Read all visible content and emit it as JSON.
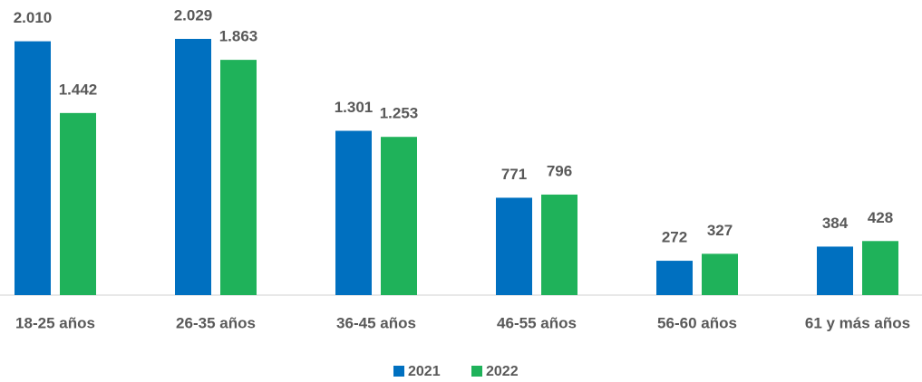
{
  "chart_data": {
    "type": "bar",
    "categories": [
      "18-25 años",
      "26-35 años",
      "36-45 años",
      "46-55 años",
      "56-60 años",
      "61 y más años"
    ],
    "series": [
      {
        "name": "2021",
        "color": "#0070c0",
        "values": [
          2010,
          2029,
          1301,
          771,
          272,
          384
        ],
        "value_labels": [
          "2.010",
          "2.029",
          "1.301",
          "771",
          "272",
          "384"
        ]
      },
      {
        "name": "2022",
        "color": "#1fb25a",
        "values": [
          1442,
          1863,
          1253,
          796,
          327,
          428
        ],
        "value_labels": [
          "1.442",
          "1.863",
          "1.253",
          "796",
          "327",
          "428"
        ]
      }
    ]
  }
}
